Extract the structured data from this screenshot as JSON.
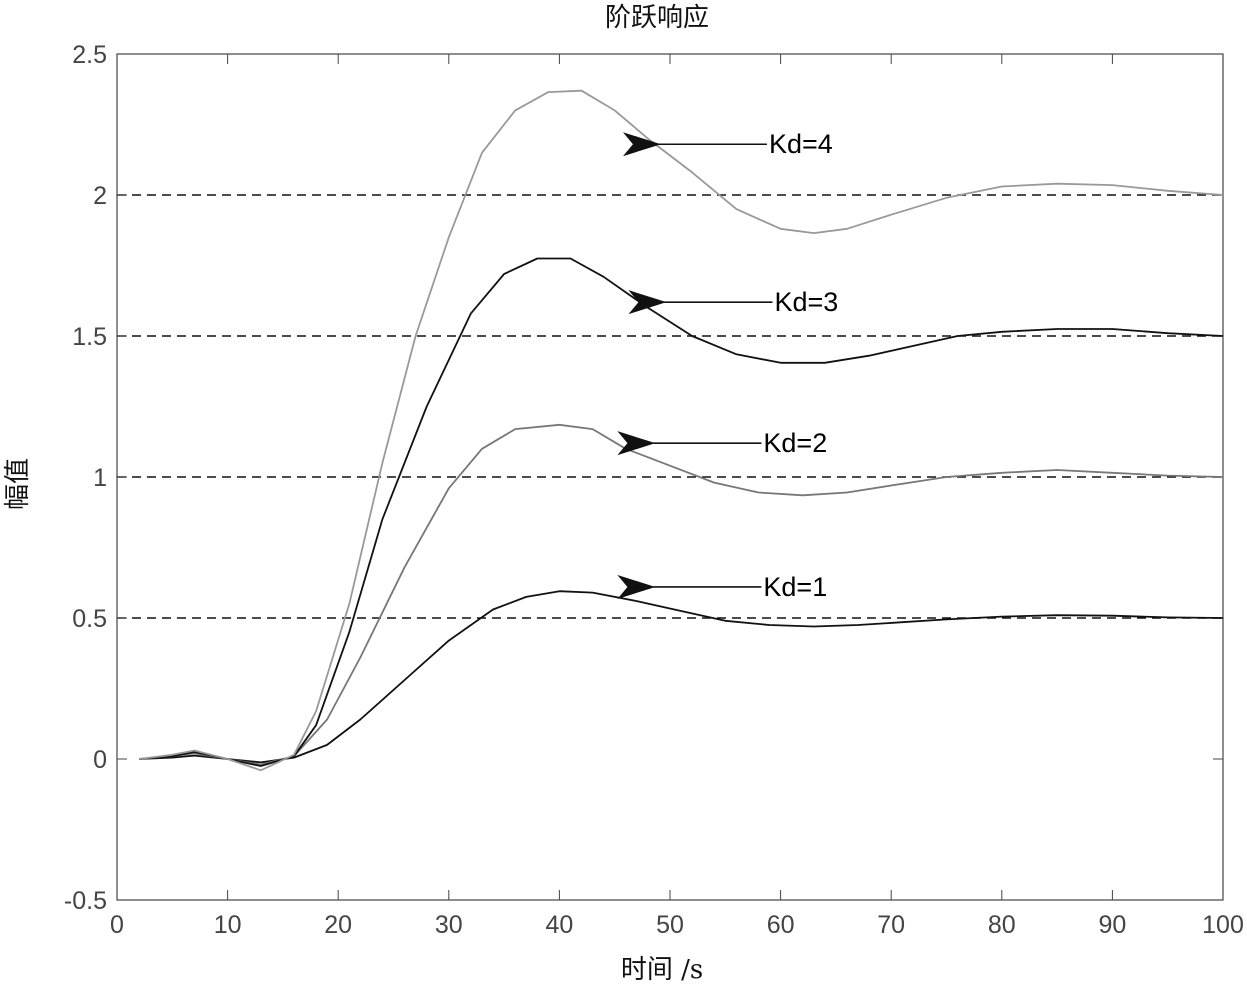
{
  "chart_data": {
    "type": "line",
    "title": "阶跃响应",
    "xlabel": "时间 /s",
    "ylabel": "幅值",
    "xlim": [
      0,
      100
    ],
    "ylim": [
      -0.5,
      2.5
    ],
    "xticks": [
      0,
      10,
      20,
      30,
      40,
      50,
      60,
      70,
      80,
      90,
      100
    ],
    "yticks": [
      -0.5,
      0,
      0.5,
      1,
      1.5,
      2,
      2.5
    ],
    "xtick_labels": [
      "0",
      "10",
      "20",
      "30",
      "40",
      "50",
      "60",
      "70",
      "80",
      "90",
      "100"
    ],
    "ytick_labels": [
      "-0.5",
      "0",
      "0.5",
      "1",
      "1.5",
      "2",
      "2.5"
    ],
    "grid": false,
    "reference_lines": [
      0.5,
      1.0,
      1.5,
      2.0
    ],
    "series": [
      {
        "name": "Kd=1",
        "color": "#111111",
        "x": [
          2,
          5,
          7,
          10,
          13,
          16,
          19,
          22,
          26,
          30,
          34,
          37,
          40,
          43,
          47,
          51,
          55,
          59,
          63,
          67,
          71,
          75,
          80,
          85,
          90,
          95,
          100
        ],
        "y": [
          0,
          0.005,
          0.012,
          0.0,
          -0.012,
          0.005,
          0.05,
          0.14,
          0.28,
          0.42,
          0.53,
          0.575,
          0.595,
          0.59,
          0.56,
          0.525,
          0.49,
          0.475,
          0.47,
          0.475,
          0.485,
          0.495,
          0.505,
          0.51,
          0.508,
          0.502,
          0.5
        ]
      },
      {
        "name": "Kd=2",
        "color": "#777777",
        "x": [
          2,
          5,
          7,
          10,
          13,
          16,
          19,
          22,
          26,
          30,
          33,
          36,
          40,
          43,
          46,
          50,
          54,
          58,
          62,
          66,
          70,
          75,
          80,
          85,
          90,
          95,
          100
        ],
        "y": [
          0,
          0.01,
          0.02,
          0.0,
          -0.02,
          0.01,
          0.14,
          0.36,
          0.68,
          0.96,
          1.1,
          1.17,
          1.185,
          1.17,
          1.1,
          1.04,
          0.98,
          0.945,
          0.935,
          0.945,
          0.97,
          1.0,
          1.015,
          1.025,
          1.015,
          1.005,
          1.0
        ]
      },
      {
        "name": "Kd=3",
        "color": "#111111",
        "x": [
          2,
          5,
          7,
          10,
          13,
          16,
          18,
          21,
          24,
          28,
          32,
          35,
          38,
          41,
          44,
          48,
          52,
          56,
          60,
          64,
          68,
          72,
          76,
          80,
          85,
          90,
          95,
          100
        ],
        "y": [
          0,
          0.01,
          0.025,
          0.0,
          -0.025,
          0.01,
          0.12,
          0.45,
          0.85,
          1.25,
          1.58,
          1.72,
          1.775,
          1.775,
          1.71,
          1.6,
          1.5,
          1.435,
          1.405,
          1.405,
          1.43,
          1.465,
          1.5,
          1.515,
          1.525,
          1.525,
          1.51,
          1.5
        ]
      },
      {
        "name": "Kd=4",
        "color": "#999999",
        "x": [
          2,
          5,
          7,
          10,
          13,
          16,
          18,
          21,
          24,
          27,
          30,
          33,
          36,
          39,
          42,
          45,
          48,
          52,
          56,
          60,
          63,
          66,
          70,
          75,
          80,
          85,
          90,
          95,
          100
        ],
        "y": [
          0,
          0.015,
          0.03,
          0.0,
          -0.04,
          0.015,
          0.17,
          0.55,
          1.05,
          1.5,
          1.85,
          2.15,
          2.3,
          2.365,
          2.37,
          2.3,
          2.2,
          2.08,
          1.95,
          1.88,
          1.865,
          1.88,
          1.93,
          1.99,
          2.03,
          2.04,
          2.035,
          2.015,
          2.0
        ]
      }
    ],
    "annotations": [
      {
        "text": "Kd=4",
        "arrow_to": [
          49,
          2.18
        ]
      },
      {
        "text": "Kd=3",
        "arrow_to": [
          49.5,
          1.62
        ]
      },
      {
        "text": "Kd=2",
        "arrow_to": [
          48.5,
          1.12
        ]
      },
      {
        "text": "Kd=1",
        "arrow_to": [
          48.5,
          0.61
        ]
      }
    ]
  }
}
